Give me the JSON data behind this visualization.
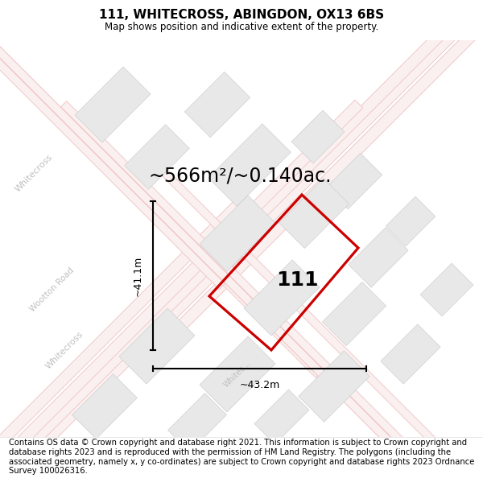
{
  "title": "111, WHITECROSS, ABINGDON, OX13 6BS",
  "subtitle": "Map shows position and indicative extent of the property.",
  "area_label": "~566m²/~0.140ac.",
  "property_number": "111",
  "dim_width": "~43.2m",
  "dim_height": "~41.1m",
  "footer": "Contains OS data © Crown copyright and database right 2021. This information is subject to Crown copyright and database rights 2023 and is reproduced with the permission of HM Land Registry. The polygons (including the associated geometry, namely x, y co-ordinates) are subject to Crown copyright and database rights 2023 Ordnance Survey 100026316.",
  "map_bg": "#ffffff",
  "road_line_color": "#f0c8c8",
  "road_fill_color": "#faf0f0",
  "block_fill": "#e8e8e8",
  "block_edge": "#d0d0d0",
  "property_stroke": "#cc0000",
  "title_fontsize": 11,
  "subtitle_fontsize": 8.5,
  "area_fontsize": 17,
  "number_fontsize": 18,
  "footer_fontsize": 7.2,
  "road_label_color": "#c0c0c0",
  "road_label_size": 8,
  "dim_line_color": "#000000",
  "dim_text_size": 9
}
